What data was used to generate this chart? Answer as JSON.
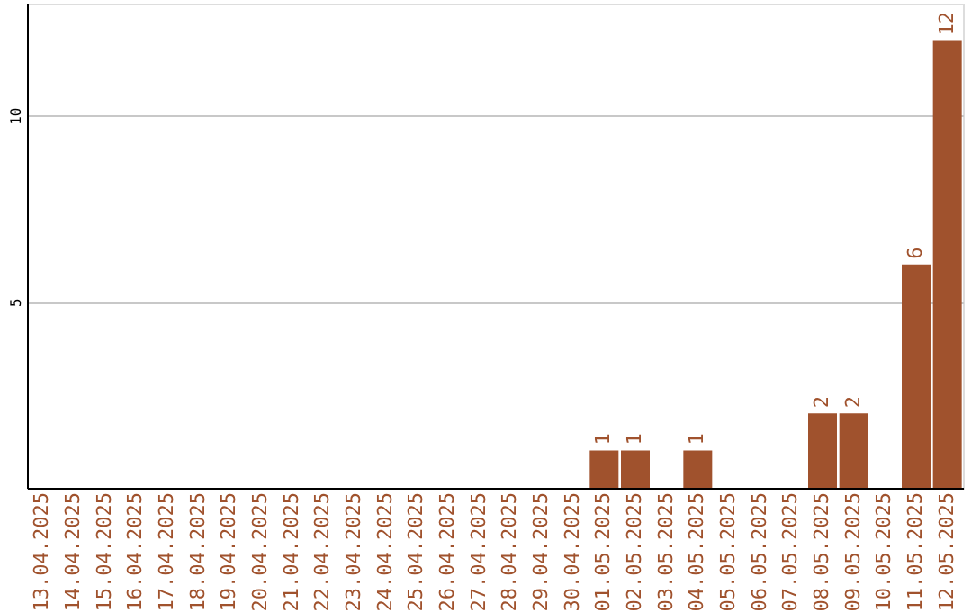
{
  "chart_data": {
    "type": "bar",
    "categories": [
      "13.04.2025",
      "14.04.2025",
      "15.04.2025",
      "16.04.2025",
      "17.04.2025",
      "18.04.2025",
      "19.04.2025",
      "20.04.2025",
      "21.04.2025",
      "22.04.2025",
      "23.04.2025",
      "24.04.2025",
      "25.04.2025",
      "26.04.2025",
      "27.04.2025",
      "28.04.2025",
      "29.04.2025",
      "30.04.2025",
      "01.05.2025",
      "02.05.2025",
      "03.05.2025",
      "04.05.2025",
      "05.05.2025",
      "06.05.2025",
      "07.05.2025",
      "08.05.2025",
      "09.05.2025",
      "10.05.2025",
      "11.05.2025",
      "12.05.2025"
    ],
    "values": [
      0,
      0,
      0,
      0,
      0,
      0,
      0,
      0,
      0,
      0,
      0,
      0,
      0,
      0,
      0,
      0,
      0,
      0,
      1,
      1,
      0,
      1,
      0,
      0,
      0,
      2,
      2,
      0,
      6,
      12
    ],
    "value_labels": [
      null,
      null,
      null,
      null,
      null,
      null,
      null,
      null,
      null,
      null,
      null,
      null,
      null,
      null,
      null,
      null,
      null,
      null,
      "1",
      "1",
      null,
      "1",
      null,
      null,
      null,
      "2",
      "2",
      null,
      "6",
      "12"
    ],
    "color": "#a0522d",
    "ylim": [
      0,
      13
    ],
    "yticks": [
      5,
      10
    ],
    "grid": "y"
  }
}
